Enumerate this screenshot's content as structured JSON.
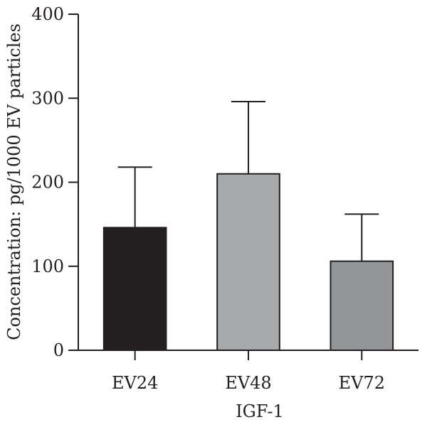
{
  "chart_data": {
    "type": "bar",
    "title": "",
    "xlabel": "IGF-1",
    "ylabel": "Concentration: pg/1000 EV particles",
    "categories": [
      "EV24",
      "EV48",
      "EV72"
    ],
    "values": [
      146,
      210,
      106
    ],
    "error_upper": [
      218,
      296,
      162
    ],
    "ylim": [
      0,
      400
    ],
    "yticks": [
      0,
      100,
      200,
      300,
      400
    ],
    "ytick_labels": [
      "0",
      "100",
      "200",
      "300",
      "400"
    ],
    "bar_colors": [
      "#231f20",
      "#a7a9ac",
      "#939598"
    ],
    "bar_outline": "#231f20",
    "grid": false,
    "legend": "none"
  }
}
